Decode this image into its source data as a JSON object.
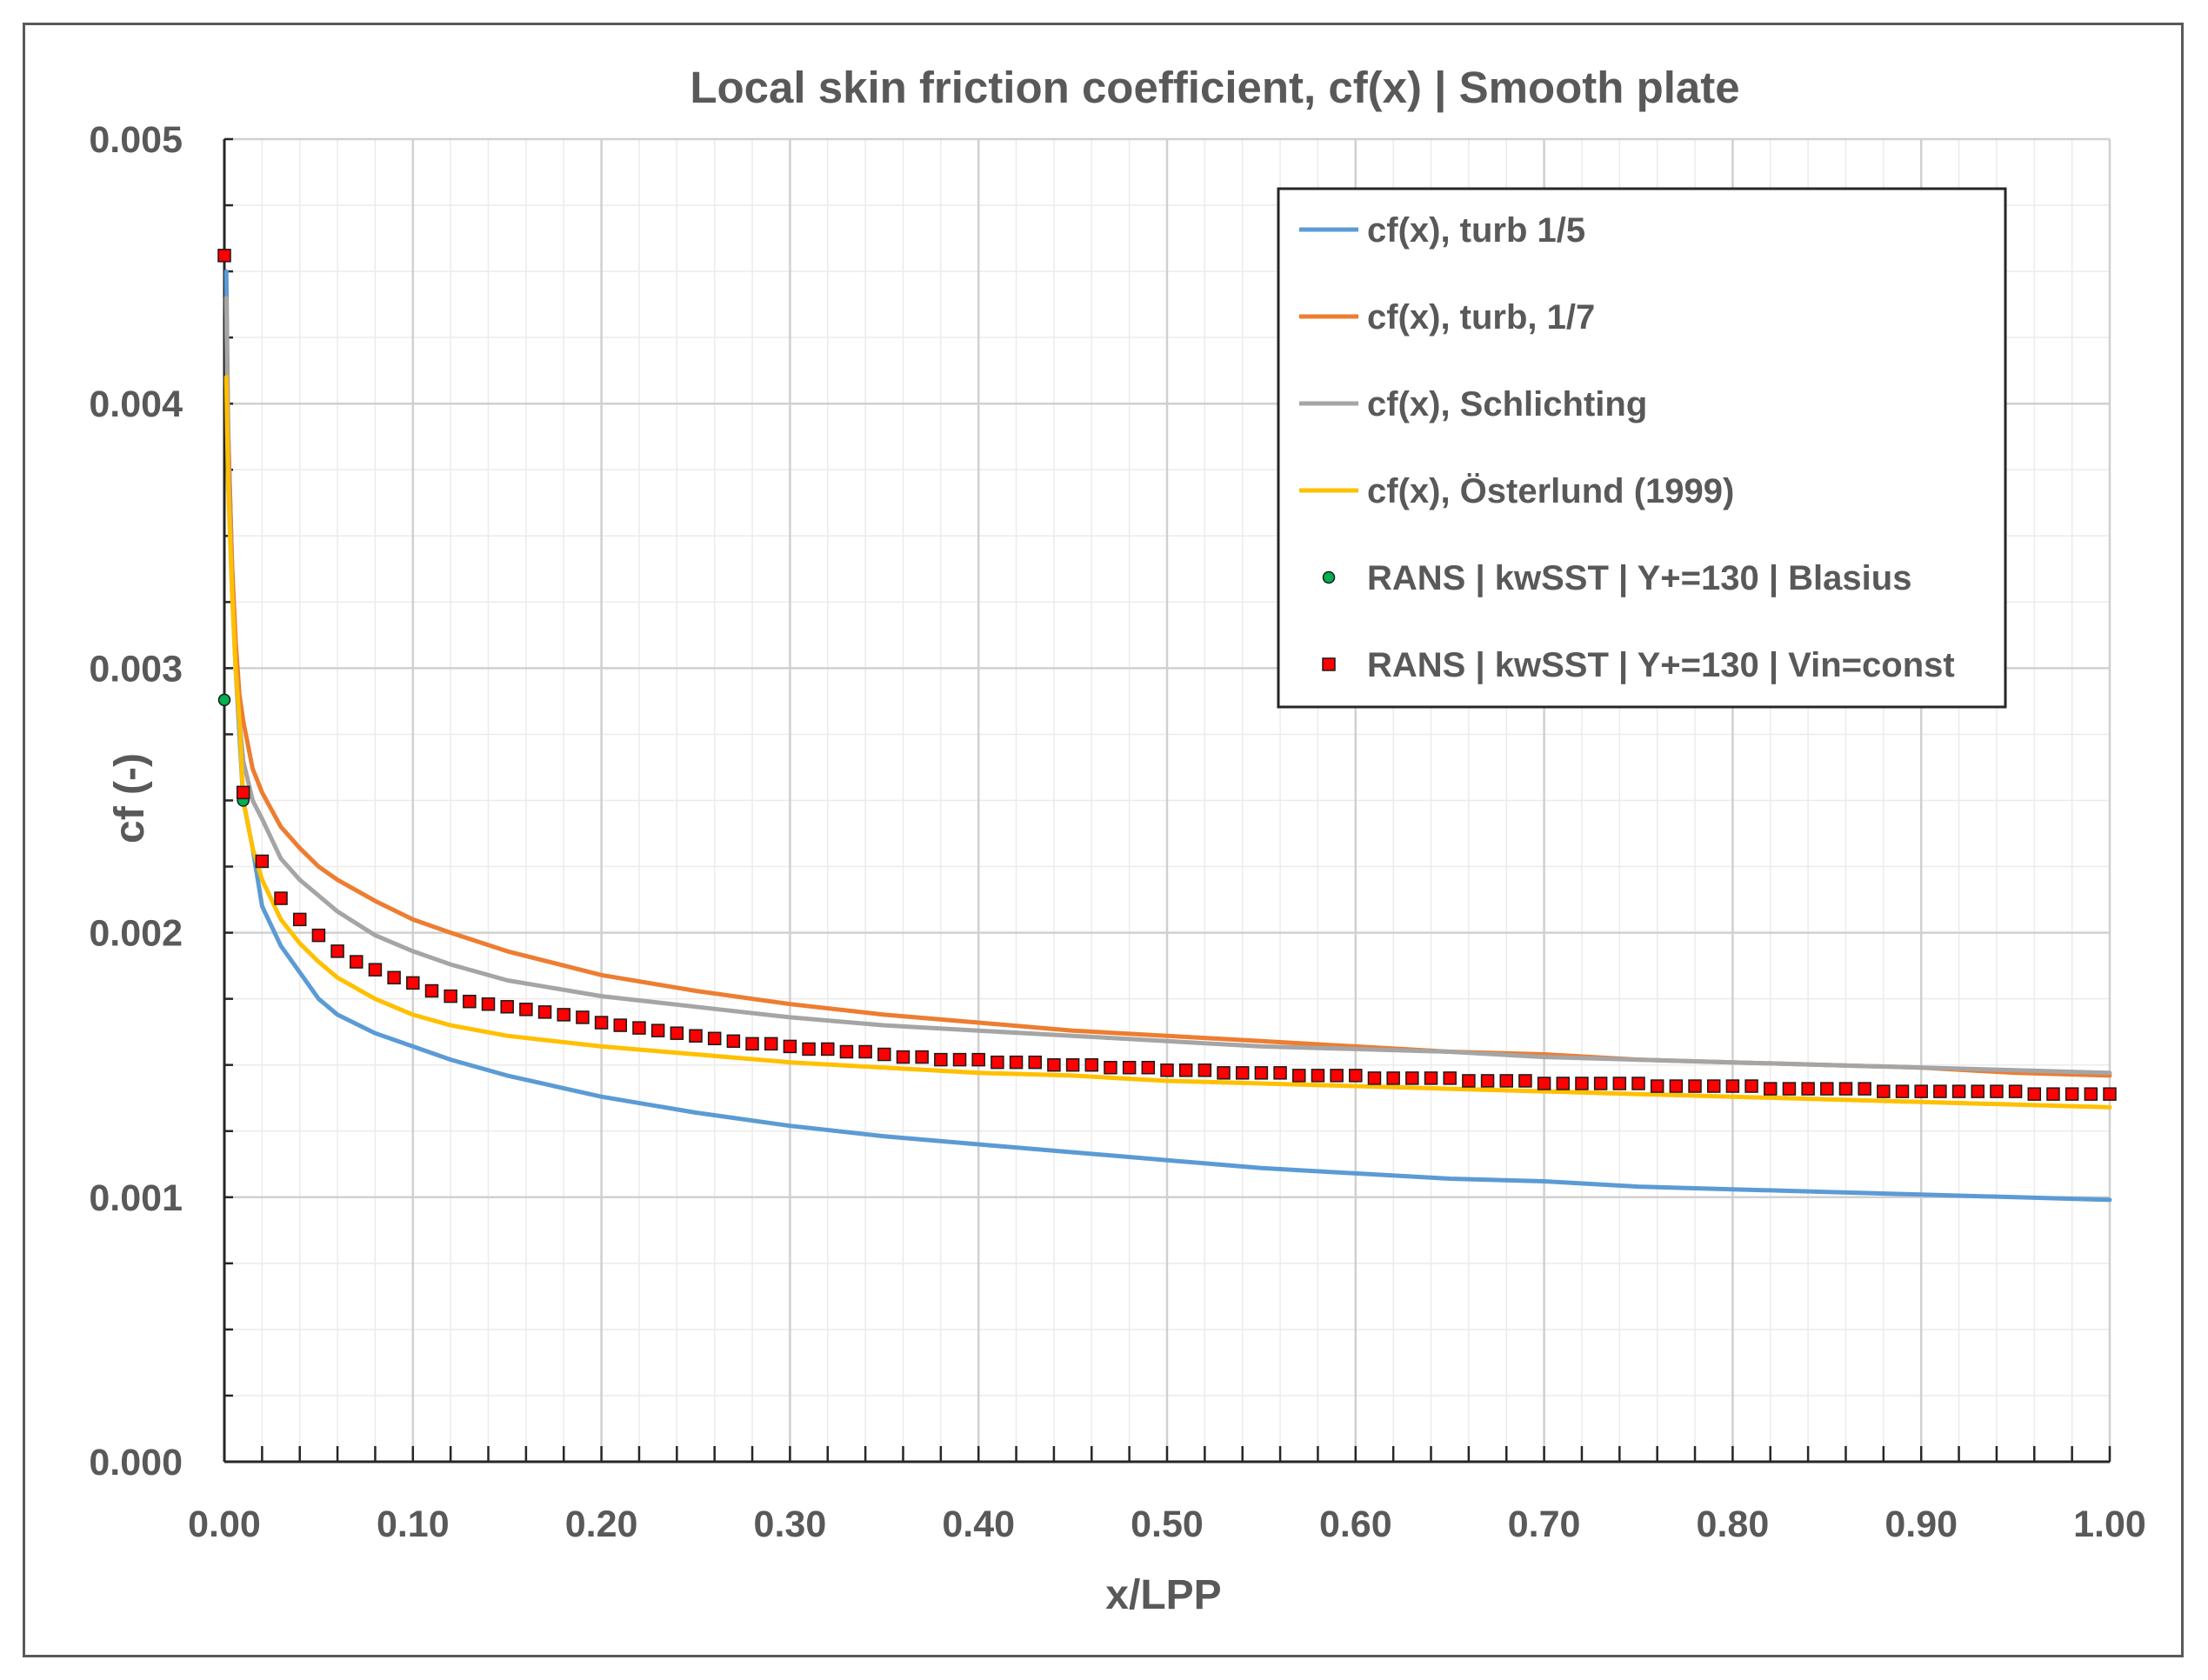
{
  "chart_data": {
    "type": "line",
    "title": "Local skin friction coefficient, cf(x) | Smooth plate",
    "xlabel": "x/LPP",
    "ylabel": "cf (-)",
    "xlim": [
      0,
      1
    ],
    "ylim": [
      0,
      0.005
    ],
    "x_ticks": [
      "0.00",
      "0.10",
      "0.20",
      "0.30",
      "0.40",
      "0.50",
      "0.60",
      "0.70",
      "0.80",
      "0.90",
      "1.00"
    ],
    "y_ticks": [
      "0.000",
      "0.001",
      "0.002",
      "0.003",
      "0.004",
      "0.005"
    ],
    "grid": true,
    "legend_position": "top-right",
    "x": [
      0.001,
      0.002,
      0.004,
      0.006,
      0.008,
      0.01,
      0.015,
      0.02,
      0.03,
      0.04,
      0.05,
      0.06,
      0.08,
      0.1,
      0.12,
      0.15,
      0.2,
      0.25,
      0.3,
      0.35,
      0.4,
      0.45,
      0.5,
      0.55,
      0.6,
      0.65,
      0.7,
      0.75,
      0.8,
      0.85,
      0.9,
      0.95,
      1.0
    ],
    "series": [
      {
        "name": "cf(x), turb 1/5",
        "kind": "line",
        "color": "#5B9BD5",
        "values": [
          0.0045,
          0.0039,
          0.0034,
          0.003,
          0.00275,
          0.0025,
          0.00232,
          0.0021,
          0.00195,
          0.00185,
          0.00175,
          0.00169,
          0.00162,
          0.00157,
          0.00152,
          0.00146,
          0.00138,
          0.00132,
          0.00127,
          0.00123,
          0.0012,
          0.00117,
          0.00114,
          0.00111,
          0.00109,
          0.00107,
          0.00106,
          0.00104,
          0.00103,
          0.00102,
          0.00101,
          0.001,
          0.00099
        ]
      },
      {
        "name": "cf(x), turb, 1/7",
        "kind": "line",
        "color": "#ED7D31",
        "values": [
          0.0044,
          0.0039,
          0.0034,
          0.0031,
          0.0029,
          0.0028,
          0.00262,
          0.00253,
          0.0024,
          0.00232,
          0.00225,
          0.0022,
          0.00212,
          0.00205,
          0.002,
          0.00193,
          0.00184,
          0.00178,
          0.00173,
          0.00169,
          0.00166,
          0.00163,
          0.00161,
          0.00159,
          0.00157,
          0.00155,
          0.00154,
          0.00152,
          0.00151,
          0.0015,
          0.00149,
          0.00147,
          0.00146
        ]
      },
      {
        "name": "cf(x), Schlichting",
        "kind": "line",
        "color": "#A5A5A5",
        "values": [
          0.0044,
          0.0038,
          0.0033,
          0.003,
          0.0028,
          0.00265,
          0.0025,
          0.00243,
          0.00228,
          0.0022,
          0.00214,
          0.00208,
          0.00199,
          0.00193,
          0.00188,
          0.00182,
          0.00176,
          0.00172,
          0.00168,
          0.00165,
          0.00163,
          0.00161,
          0.00159,
          0.00157,
          0.00156,
          0.00155,
          0.00153,
          0.00152,
          0.00151,
          0.0015,
          0.00149,
          0.00148,
          0.00147
        ]
      },
      {
        "name": "cf(x), Österlund (1999)",
        "kind": "line",
        "color": "#FFC000",
        "values": [
          0.0041,
          0.0037,
          0.0033,
          0.003,
          0.0028,
          0.0025,
          0.00232,
          0.0022,
          0.00205,
          0.00196,
          0.00189,
          0.00183,
          0.00175,
          0.00169,
          0.00165,
          0.00161,
          0.00157,
          0.00154,
          0.00151,
          0.00149,
          0.00147,
          0.00146,
          0.00144,
          0.00143,
          0.00142,
          0.00141,
          0.0014,
          0.00139,
          0.00138,
          0.00137,
          0.00136,
          0.00135,
          0.00134
        ]
      },
      {
        "name": "RANS | kwSST | Y+=130 | Blasius",
        "kind": "circle",
        "color": "#00B050",
        "x": [
          0.0,
          0.01,
          0.02,
          0.03
        ],
        "values": [
          0.00288,
          0.0025,
          0.00227,
          0.00213
        ]
      },
      {
        "name": "RANS | kwSST | Y+=130 | Vin=const",
        "kind": "square",
        "color": "#FF0000",
        "x": [
          0.0,
          0.01,
          0.02,
          0.03,
          0.04,
          0.05,
          0.06,
          0.07,
          0.08,
          0.09,
          0.1,
          0.11,
          0.12,
          0.13,
          0.14,
          0.15,
          0.16,
          0.17,
          0.18,
          0.19,
          0.2,
          0.21,
          0.22,
          0.23,
          0.24,
          0.25,
          0.26,
          0.27,
          0.28,
          0.29,
          0.3,
          0.31,
          0.32,
          0.33,
          0.34,
          0.35,
          0.36,
          0.37,
          0.38,
          0.39,
          0.4,
          0.41,
          0.42,
          0.43,
          0.44,
          0.45,
          0.46,
          0.47,
          0.48,
          0.49,
          0.5,
          0.51,
          0.52,
          0.53,
          0.54,
          0.55,
          0.56,
          0.57,
          0.58,
          0.59,
          0.6,
          0.61,
          0.62,
          0.63,
          0.64,
          0.65,
          0.66,
          0.67,
          0.68,
          0.69,
          0.7,
          0.71,
          0.72,
          0.73,
          0.74,
          0.75,
          0.76,
          0.77,
          0.78,
          0.79,
          0.8,
          0.81,
          0.82,
          0.83,
          0.84,
          0.85,
          0.86,
          0.87,
          0.88,
          0.89,
          0.9,
          0.91,
          0.92,
          0.93,
          0.94,
          0.95,
          0.96,
          0.97,
          0.98,
          0.99,
          1.0
        ],
        "values": [
          0.00456,
          0.00253,
          0.00227,
          0.00213,
          0.00205,
          0.00199,
          0.00193,
          0.00189,
          0.00186,
          0.00183,
          0.00181,
          0.00178,
          0.00176,
          0.00174,
          0.00173,
          0.00172,
          0.00171,
          0.0017,
          0.00169,
          0.00168,
          0.00166,
          0.00165,
          0.00164,
          0.00163,
          0.00162,
          0.00161,
          0.0016,
          0.00159,
          0.00158,
          0.00158,
          0.00157,
          0.00156,
          0.00156,
          0.00155,
          0.00155,
          0.00154,
          0.00153,
          0.00153,
          0.00152,
          0.00152,
          0.00152,
          0.00151,
          0.00151,
          0.00151,
          0.0015,
          0.0015,
          0.0015,
          0.00149,
          0.00149,
          0.00149,
          0.00148,
          0.00148,
          0.00148,
          0.00147,
          0.00147,
          0.00147,
          0.00147,
          0.00146,
          0.00146,
          0.00146,
          0.00146,
          0.00145,
          0.00145,
          0.00145,
          0.00145,
          0.00145,
          0.00144,
          0.00144,
          0.00144,
          0.00144,
          0.00143,
          0.00143,
          0.00143,
          0.00143,
          0.00143,
          0.00143,
          0.00142,
          0.00142,
          0.00142,
          0.00142,
          0.00142,
          0.00142,
          0.00141,
          0.00141,
          0.00141,
          0.00141,
          0.00141,
          0.00141,
          0.0014,
          0.0014,
          0.0014,
          0.0014,
          0.0014,
          0.0014,
          0.0014,
          0.0014,
          0.00139,
          0.00139,
          0.00139,
          0.00139,
          0.00139
        ]
      }
    ]
  }
}
